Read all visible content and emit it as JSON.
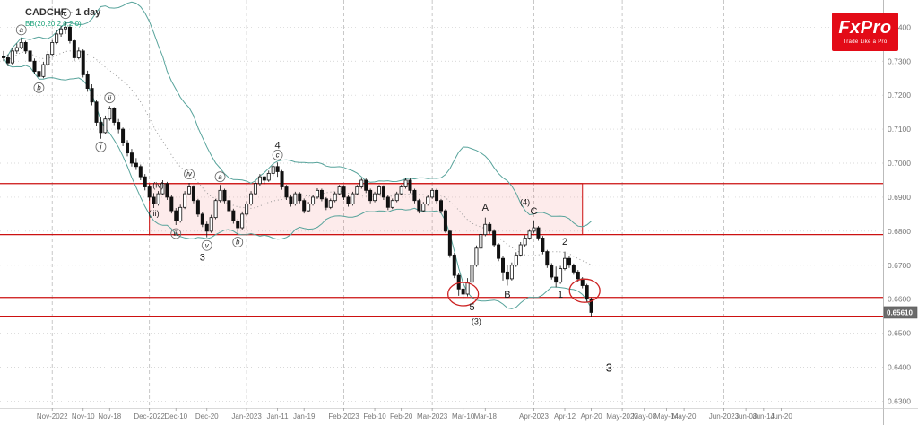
{
  "header": {
    "symbol_title": "CADCHF - 1 day",
    "indicator_label": "BB(20,20,2,0,2,0)"
  },
  "logo": {
    "brand": "FxPro",
    "tagline": "Trade Like a Pro",
    "bg_color": "#e30b17"
  },
  "price_axis": {
    "current_price": "0.65610"
  },
  "colors": {
    "up_candle": "#ffffff",
    "down_candle": "#111111",
    "candle_border": "#111111",
    "bollinger": "#57a39b",
    "sma_dotted": "#999999",
    "level_line": "#cc1111",
    "zone_fill": "rgba(235,60,60,0.10)",
    "zone_border": "#cc1111",
    "circle_marker": "#cc2222",
    "grid": "#cccccc",
    "axis_text": "#777777",
    "wave_label": "#1a1a1a",
    "badge_bg": "#6b6b6b",
    "badge_text": "#ffffff"
  },
  "chart_data": {
    "type": "candlestick",
    "symbol": "CADCHF",
    "timeframe": "1 day",
    "indicator": "Bollinger Bands (20, 2)",
    "ylim": [
      0.628,
      0.748
    ],
    "y_ticks": [
      0.74,
      0.73,
      0.72,
      0.71,
      0.7,
      0.69,
      0.68,
      0.67,
      0.66,
      0.65,
      0.64,
      0.63
    ],
    "total_slots": 198,
    "x_ticks": [
      {
        "label": "Nov-2022",
        "idx": 11,
        "month": true
      },
      {
        "label": "Nov-10",
        "idx": 18,
        "month": false
      },
      {
        "label": "Nov-18",
        "idx": 24,
        "month": false
      },
      {
        "label": "Dec-2022",
        "idx": 33,
        "month": true
      },
      {
        "label": "Dec-10",
        "idx": 39,
        "month": false
      },
      {
        "label": "Dec-20",
        "idx": 46,
        "month": false
      },
      {
        "label": "Jan-2023",
        "idx": 55,
        "month": true
      },
      {
        "label": "Jan-11",
        "idx": 62,
        "month": false
      },
      {
        "label": "Jan-19",
        "idx": 68,
        "month": false
      },
      {
        "label": "Feb-2023",
        "idx": 77,
        "month": true
      },
      {
        "label": "Feb-10",
        "idx": 84,
        "month": false
      },
      {
        "label": "Feb-20",
        "idx": 90,
        "month": false
      },
      {
        "label": "Mar-2023",
        "idx": 97,
        "month": true
      },
      {
        "label": "Mar-10",
        "idx": 104,
        "month": false
      },
      {
        "label": "Mar-18",
        "idx": 109,
        "month": false
      },
      {
        "label": "Apr-2023",
        "idx": 120,
        "month": true
      },
      {
        "label": "Apr-12",
        "idx": 127,
        "month": false
      },
      {
        "label": "Apr-20",
        "idx": 133,
        "month": false
      },
      {
        "label": "May-2023",
        "idx": 140,
        "month": true
      },
      {
        "label": "May-08",
        "idx": 145,
        "month": false
      },
      {
        "label": "May-14",
        "idx": 150,
        "month": false
      },
      {
        "label": "May-20",
        "idx": 154,
        "month": false
      },
      {
        "label": "Jun-2023",
        "idx": 163,
        "month": true
      },
      {
        "label": "Jun-08",
        "idx": 168,
        "month": false
      },
      {
        "label": "Jun-14",
        "idx": 172,
        "month": false
      },
      {
        "label": "Jun-20",
        "idx": 176,
        "month": false
      }
    ],
    "ohlc_columns": [
      "open",
      "high",
      "low",
      "close"
    ],
    "candles": [
      [
        0.7315,
        0.733,
        0.73,
        0.731
      ],
      [
        0.731,
        0.732,
        0.7285,
        0.7295
      ],
      [
        0.7295,
        0.7338,
        0.729,
        0.733
      ],
      [
        0.733,
        0.7352,
        0.7322,
        0.734
      ],
      [
        0.734,
        0.7368,
        0.7335,
        0.7355
      ],
      [
        0.7355,
        0.736,
        0.7322,
        0.733
      ],
      [
        0.733,
        0.7336,
        0.7292,
        0.73
      ],
      [
        0.73,
        0.7308,
        0.7262,
        0.727
      ],
      [
        0.727,
        0.7282,
        0.7244,
        0.7255
      ],
      [
        0.7255,
        0.7298,
        0.725,
        0.729
      ],
      [
        0.729,
        0.733,
        0.7285,
        0.732
      ],
      [
        0.732,
        0.7362,
        0.7315,
        0.7355
      ],
      [
        0.7355,
        0.739,
        0.735,
        0.738
      ],
      [
        0.738,
        0.7404,
        0.7372,
        0.7395
      ],
      [
        0.7395,
        0.7415,
        0.738,
        0.74
      ],
      [
        0.74,
        0.7408,
        0.7352,
        0.736
      ],
      [
        0.736,
        0.7366,
        0.73,
        0.731
      ],
      [
        0.731,
        0.7342,
        0.7305,
        0.733
      ],
      [
        0.733,
        0.7335,
        0.7252,
        0.726
      ],
      [
        0.726,
        0.7272,
        0.721,
        0.722
      ],
      [
        0.722,
        0.7232,
        0.717,
        0.718
      ],
      [
        0.718,
        0.7186,
        0.711,
        0.712
      ],
      [
        0.712,
        0.7135,
        0.7072,
        0.709
      ],
      [
        0.709,
        0.714,
        0.7085,
        0.713
      ],
      [
        0.713,
        0.7168,
        0.7125,
        0.716
      ],
      [
        0.716,
        0.7165,
        0.7112,
        0.712
      ],
      [
        0.712,
        0.713,
        0.7088,
        0.71
      ],
      [
        0.71,
        0.7105,
        0.705,
        0.706
      ],
      [
        0.706,
        0.7068,
        0.702,
        0.703
      ],
      [
        0.703,
        0.7042,
        0.699,
        0.7
      ],
      [
        0.7,
        0.7015,
        0.698,
        0.699
      ],
      [
        0.699,
        0.6996,
        0.695,
        0.696
      ],
      [
        0.696,
        0.6968,
        0.692,
        0.693
      ],
      [
        0.693,
        0.6938,
        0.689,
        0.69
      ],
      [
        0.69,
        0.6912,
        0.6868,
        0.688
      ],
      [
        0.688,
        0.6918,
        0.6875,
        0.691
      ],
      [
        0.691,
        0.695,
        0.6905,
        0.694
      ],
      [
        0.694,
        0.6945,
        0.6892,
        0.69
      ],
      [
        0.69,
        0.6906,
        0.6852,
        0.686
      ],
      [
        0.686,
        0.6868,
        0.6818,
        0.683
      ],
      [
        0.683,
        0.6878,
        0.6825,
        0.687
      ],
      [
        0.687,
        0.6918,
        0.6865,
        0.691
      ],
      [
        0.691,
        0.6942,
        0.6905,
        0.693
      ],
      [
        0.693,
        0.6935,
        0.6882,
        0.689
      ],
      [
        0.689,
        0.6895,
        0.6842,
        0.685
      ],
      [
        0.685,
        0.6856,
        0.6812,
        0.682
      ],
      [
        0.682,
        0.6828,
        0.6782,
        0.68
      ],
      [
        0.68,
        0.6848,
        0.6795,
        0.684
      ],
      [
        0.684,
        0.6895,
        0.6835,
        0.689
      ],
      [
        0.689,
        0.6936,
        0.6885,
        0.692
      ],
      [
        0.692,
        0.6925,
        0.6882,
        0.689
      ],
      [
        0.689,
        0.6896,
        0.6852,
        0.686
      ],
      [
        0.686,
        0.6866,
        0.6822,
        0.683
      ],
      [
        0.683,
        0.6836,
        0.6792,
        0.681
      ],
      [
        0.681,
        0.6858,
        0.6805,
        0.685
      ],
      [
        0.685,
        0.6888,
        0.6845,
        0.688
      ],
      [
        0.688,
        0.6918,
        0.6875,
        0.691
      ],
      [
        0.691,
        0.6948,
        0.6905,
        0.694
      ],
      [
        0.694,
        0.6968,
        0.6932,
        0.696
      ],
      [
        0.696,
        0.6962,
        0.6938,
        0.695
      ],
      [
        0.695,
        0.6978,
        0.6945,
        0.697
      ],
      [
        0.697,
        0.6998,
        0.6962,
        0.699
      ],
      [
        0.699,
        0.7002,
        0.696,
        0.6975
      ],
      [
        0.6975,
        0.698,
        0.6922,
        0.693
      ],
      [
        0.693,
        0.6936,
        0.6892,
        0.69
      ],
      [
        0.69,
        0.6908,
        0.6872,
        0.688
      ],
      [
        0.688,
        0.6916,
        0.6875,
        0.691
      ],
      [
        0.691,
        0.6915,
        0.6882,
        0.689
      ],
      [
        0.689,
        0.6896,
        0.6852,
        0.686
      ],
      [
        0.686,
        0.6886,
        0.6855,
        0.688
      ],
      [
        0.688,
        0.6906,
        0.6875,
        0.69
      ],
      [
        0.69,
        0.6926,
        0.6895,
        0.692
      ],
      [
        0.692,
        0.6925,
        0.6888,
        0.6895
      ],
      [
        0.6895,
        0.69,
        0.6862,
        0.687
      ],
      [
        0.687,
        0.6896,
        0.6865,
        0.689
      ],
      [
        0.689,
        0.6916,
        0.6885,
        0.691
      ],
      [
        0.691,
        0.6936,
        0.6905,
        0.693
      ],
      [
        0.693,
        0.6935,
        0.6892,
        0.69
      ],
      [
        0.69,
        0.6905,
        0.6872,
        0.688
      ],
      [
        0.688,
        0.6916,
        0.6875,
        0.691
      ],
      [
        0.691,
        0.6936,
        0.6905,
        0.693
      ],
      [
        0.693,
        0.6956,
        0.6925,
        0.695
      ],
      [
        0.695,
        0.6955,
        0.6912,
        0.692
      ],
      [
        0.692,
        0.6925,
        0.6882,
        0.689
      ],
      [
        0.689,
        0.6916,
        0.6885,
        0.691
      ],
      [
        0.691,
        0.6936,
        0.6905,
        0.693
      ],
      [
        0.693,
        0.6935,
        0.6892,
        0.69
      ],
      [
        0.69,
        0.6905,
        0.6862,
        0.687
      ],
      [
        0.687,
        0.6896,
        0.6865,
        0.689
      ],
      [
        0.689,
        0.6916,
        0.6885,
        0.691
      ],
      [
        0.691,
        0.6936,
        0.6905,
        0.693
      ],
      [
        0.693,
        0.6956,
        0.6925,
        0.695
      ],
      [
        0.695,
        0.6955,
        0.6912,
        0.692
      ],
      [
        0.692,
        0.6925,
        0.6882,
        0.689
      ],
      [
        0.689,
        0.6895,
        0.6852,
        0.686
      ],
      [
        0.686,
        0.6886,
        0.6855,
        0.688
      ],
      [
        0.688,
        0.6906,
        0.6875,
        0.69
      ],
      [
        0.69,
        0.6926,
        0.6895,
        0.692
      ],
      [
        0.692,
        0.6925,
        0.6882,
        0.689
      ],
      [
        0.689,
        0.6895,
        0.6852,
        0.686
      ],
      [
        0.686,
        0.6865,
        0.6795,
        0.68
      ],
      [
        0.68,
        0.6805,
        0.6722,
        0.673
      ],
      [
        0.673,
        0.6736,
        0.6662,
        0.667
      ],
      [
        0.667,
        0.6676,
        0.661,
        0.663
      ],
      [
        0.663,
        0.6648,
        0.66,
        0.6615
      ],
      [
        0.6615,
        0.6662,
        0.6608,
        0.665
      ],
      [
        0.665,
        0.6708,
        0.6645,
        0.67
      ],
      [
        0.67,
        0.6758,
        0.6695,
        0.675
      ],
      [
        0.675,
        0.6798,
        0.6745,
        0.679
      ],
      [
        0.679,
        0.684,
        0.6785,
        0.682
      ],
      [
        0.682,
        0.6826,
        0.6792,
        0.68
      ],
      [
        0.68,
        0.6806,
        0.6752,
        0.676
      ],
      [
        0.676,
        0.6765,
        0.6712,
        0.672
      ],
      [
        0.672,
        0.6726,
        0.6655,
        0.668
      ],
      [
        0.668,
        0.6702,
        0.664,
        0.666
      ],
      [
        0.666,
        0.6708,
        0.6655,
        0.67
      ],
      [
        0.67,
        0.6738,
        0.6695,
        0.673
      ],
      [
        0.673,
        0.6768,
        0.6725,
        0.676
      ],
      [
        0.676,
        0.6788,
        0.6755,
        0.678
      ],
      [
        0.678,
        0.6806,
        0.6775,
        0.68
      ],
      [
        0.68,
        0.683,
        0.6795,
        0.681
      ],
      [
        0.681,
        0.6815,
        0.6772,
        0.678
      ],
      [
        0.678,
        0.6786,
        0.6732,
        0.674
      ],
      [
        0.674,
        0.6745,
        0.6692,
        0.67
      ],
      [
        0.67,
        0.6706,
        0.6658,
        0.6665
      ],
      [
        0.6665,
        0.6696,
        0.6635,
        0.665
      ],
      [
        0.665,
        0.6698,
        0.6645,
        0.669
      ],
      [
        0.669,
        0.674,
        0.6685,
        0.672
      ],
      [
        0.672,
        0.6726,
        0.6692,
        0.67
      ],
      [
        0.67,
        0.6705,
        0.6672,
        0.668
      ],
      [
        0.668,
        0.6686,
        0.6652,
        0.666
      ],
      [
        0.666,
        0.6665,
        0.6632,
        0.664
      ],
      [
        0.664,
        0.6645,
        0.6592,
        0.66
      ],
      [
        0.66,
        0.6605,
        0.6548,
        0.6561
      ]
    ],
    "bollinger": {
      "period": 20,
      "deviation": 2
    },
    "support_resistance_lines": [
      0.694,
      0.679,
      0.6605,
      0.655
    ],
    "zone": {
      "from_idx": 33,
      "to_idx": 131,
      "price_top": 0.694,
      "price_bottom": 0.679
    },
    "circles": [
      {
        "idx": 104,
        "price": 0.6615
      },
      {
        "idx": 131.5,
        "price": 0.6625
      }
    ],
    "wave_labels": [
      {
        "text": "a",
        "idx": 4,
        "price": 0.7392,
        "circled": true,
        "size": 8
      },
      {
        "text": "b",
        "idx": 8,
        "price": 0.7222,
        "circled": true,
        "size": 8
      },
      {
        "text": "c",
        "idx": 14,
        "price": 0.744,
        "circled": true,
        "size": 8
      },
      {
        "text": "i",
        "idx": 22,
        "price": 0.7048,
        "circled": true,
        "size": 8
      },
      {
        "text": "ii",
        "idx": 24,
        "price": 0.7192,
        "circled": true,
        "size": 8
      },
      {
        "text": "(iv)",
        "idx": 35,
        "price": 0.6935,
        "circled": false,
        "size": 9
      },
      {
        "text": "(iii)",
        "idx": 34,
        "price": 0.6852,
        "circled": false,
        "size": 9
      },
      {
        "text": "iv",
        "idx": 42,
        "price": 0.6968,
        "circled": true,
        "size": 8
      },
      {
        "text": "iii",
        "idx": 39,
        "price": 0.6793,
        "circled": true,
        "size": 8
      },
      {
        "text": "v",
        "idx": 46,
        "price": 0.6758,
        "circled": true,
        "size": 8
      },
      {
        "text": "3",
        "idx": 45,
        "price": 0.6722,
        "circled": false,
        "size": 11
      },
      {
        "text": "a",
        "idx": 49,
        "price": 0.696,
        "circled": true,
        "size": 8
      },
      {
        "text": "b",
        "idx": 53,
        "price": 0.6768,
        "circled": true,
        "size": 8
      },
      {
        "text": "4",
        "idx": 62,
        "price": 0.7052,
        "circled": false,
        "size": 11
      },
      {
        "text": "c",
        "idx": 62,
        "price": 0.7024,
        "circled": true,
        "size": 8
      },
      {
        "text": "A",
        "idx": 109,
        "price": 0.6868,
        "circled": false,
        "size": 11
      },
      {
        "text": "B",
        "idx": 114,
        "price": 0.6612,
        "circled": false,
        "size": 11
      },
      {
        "text": "(4)",
        "idx": 118,
        "price": 0.6885,
        "circled": false,
        "size": 9
      },
      {
        "text": "C",
        "idx": 120,
        "price": 0.6858,
        "circled": false,
        "size": 11
      },
      {
        "text": "5",
        "idx": 106,
        "price": 0.6575,
        "circled": false,
        "size": 11
      },
      {
        "text": "(3)",
        "idx": 107,
        "price": 0.6535,
        "circled": false,
        "size": 9
      },
      {
        "text": "1",
        "idx": 126,
        "price": 0.6612,
        "circled": false,
        "size": 11
      },
      {
        "text": "2",
        "idx": 127,
        "price": 0.6768,
        "circled": false,
        "size": 11
      },
      {
        "text": "3",
        "idx": 137,
        "price": 0.6395,
        "circled": false,
        "size": 13
      }
    ]
  }
}
